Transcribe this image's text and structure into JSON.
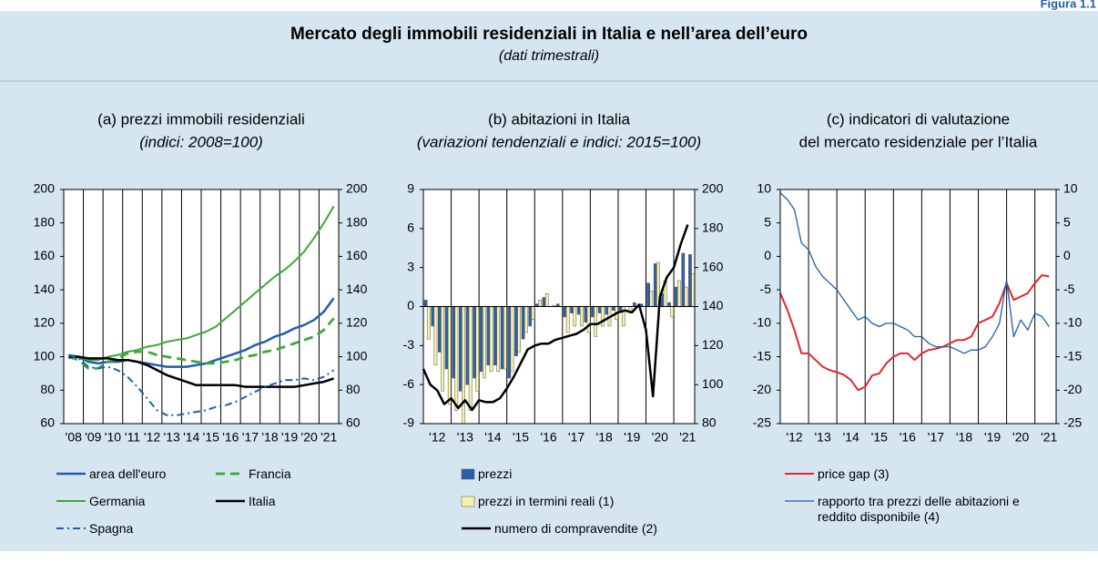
{
  "header": {
    "figure": "Figura 1.1",
    "title": "Mercato degli immobili residenziali in Italia e nell’area dell’euro",
    "subtitle": "(dati trimestrali)"
  },
  "chart_data": [
    {
      "type": "line",
      "title": "(a) prezzi immobili residenziali",
      "subtitle": "(indici: 2008=100)",
      "x": [
        2008.25,
        2008.75,
        2009.25,
        2009.75,
        2010.25,
        2010.75,
        2011.25,
        2011.75,
        2012.25,
        2012.75,
        2013.25,
        2013.75,
        2014.25,
        2014.75,
        2015.25,
        2015.75,
        2016.25,
        2016.75,
        2017.25,
        2017.75,
        2018.25,
        2018.75,
        2019.25,
        2019.75,
        2020.25,
        2020.75,
        2021.25,
        2021.75
      ],
      "xlim": [
        2008,
        2022
      ],
      "xticks": [
        {
          "value": 2008.5,
          "label": "'08"
        },
        {
          "value": 2009.5,
          "label": "'09"
        },
        {
          "value": 2010.5,
          "label": "'10"
        },
        {
          "value": 2011.5,
          "label": "'11"
        },
        {
          "value": 2012.5,
          "label": "'12"
        },
        {
          "value": 2013.5,
          "label": "'13"
        },
        {
          "value": 2014.5,
          "label": "'14"
        },
        {
          "value": 2015.5,
          "label": "'15"
        },
        {
          "value": 2016.5,
          "label": "'16"
        },
        {
          "value": 2017.5,
          "label": "'17"
        },
        {
          "value": 2018.5,
          "label": "'18"
        },
        {
          "value": 2019.5,
          "label": "'19"
        },
        {
          "value": 2020.5,
          "label": "'20"
        },
        {
          "value": 2021.5,
          "label": "'21"
        }
      ],
      "ylim": [
        60,
        200
      ],
      "yticks": [
        60,
        80,
        100,
        120,
        140,
        160,
        180,
        200
      ],
      "y2lim": [
        60,
        200
      ],
      "y2ticks": [
        60,
        80,
        100,
        120,
        140,
        160,
        180,
        200
      ],
      "series": [
        {
          "name": "area dell'euro",
          "color": "#1f5fad",
          "linestyle": "solid",
          "values": [
            101,
            100,
            97,
            96,
            97,
            97,
            98,
            97,
            96,
            95,
            94,
            94,
            94,
            95,
            96,
            98,
            100,
            102,
            104,
            107,
            109,
            112,
            114,
            117,
            119,
            122,
            127,
            135
          ]
        },
        {
          "name": "Francia",
          "color": "#3aaa35",
          "linestyle": "dashed",
          "values": [
            100,
            98,
            93,
            93,
            97,
            99,
            102,
            103,
            103,
            101,
            100,
            99,
            98,
            97,
            96,
            96,
            97,
            98,
            100,
            101,
            103,
            104,
            106,
            108,
            110,
            112,
            116,
            123
          ]
        },
        {
          "name": "Germania",
          "color": "#3aaa35",
          "linestyle": "solid",
          "values": [
            99,
            100,
            98,
            98,
            100,
            101,
            103,
            104,
            106,
            107,
            109,
            110,
            111,
            113,
            115,
            118,
            123,
            128,
            133,
            138,
            143,
            148,
            152,
            157,
            163,
            171,
            180,
            190
          ]
        },
        {
          "name": "Italia",
          "color": "#000000",
          "linestyle": "solid",
          "values": [
            100,
            100,
            99,
            99,
            99,
            98,
            98,
            97,
            95,
            92,
            89,
            87,
            85,
            83,
            83,
            83,
            83,
            83,
            82,
            82,
            82,
            82,
            82,
            82,
            83,
            84,
            85,
            87
          ]
        },
        {
          "name": "Spagna",
          "color": "#1f5fad",
          "linestyle": "dashdot",
          "values": [
            101,
            99,
            94,
            93,
            94,
            92,
            88,
            82,
            75,
            68,
            65,
            65,
            66,
            67,
            68,
            70,
            71,
            73,
            76,
            79,
            82,
            84,
            86,
            86,
            87,
            86,
            88,
            92
          ]
        }
      ]
    },
    {
      "type": "bar",
      "title": "(b) abitazioni in Italia",
      "subtitle": "(variazioni tendenziali e indici: 2015=100)",
      "x": [
        2012,
        2012.25,
        2012.5,
        2012.75,
        2013,
        2013.25,
        2013.5,
        2013.75,
        2014,
        2014.25,
        2014.5,
        2014.75,
        2015,
        2015.25,
        2015.5,
        2015.75,
        2016,
        2016.25,
        2016.5,
        2016.75,
        2017,
        2017.25,
        2017.5,
        2017.75,
        2018,
        2018.25,
        2018.5,
        2018.75,
        2019,
        2019.25,
        2019.5,
        2019.75,
        2020,
        2020.25,
        2020.5,
        2020.75,
        2021,
        2021.25,
        2021.5
      ],
      "xlim": [
        2012,
        2021.75
      ],
      "xticks": [
        {
          "value": 2012.5,
          "label": "'12"
        },
        {
          "value": 2013.5,
          "label": "'13"
        },
        {
          "value": 2014.5,
          "label": "'14"
        },
        {
          "value": 2015.5,
          "label": "'15"
        },
        {
          "value": 2016.5,
          "label": "'16"
        },
        {
          "value": 2017.5,
          "label": "'17"
        },
        {
          "value": 2018.5,
          "label": "'18"
        },
        {
          "value": 2019.5,
          "label": "'19"
        },
        {
          "value": 2020.5,
          "label": "'20"
        },
        {
          "value": 2021.5,
          "label": "'21"
        }
      ],
      "ylim": [
        -9,
        9
      ],
      "yticks": [
        -9,
        -6,
        -3,
        0,
        3,
        6,
        9
      ],
      "y2lim": [
        80,
        200
      ],
      "y2ticks": [
        80,
        100,
        120,
        140,
        160,
        180,
        200
      ],
      "series": [
        {
          "name": "prezzi",
          "type": "bar",
          "color": "#2f5ea8",
          "values": [
            0.5,
            -1.5,
            -3.5,
            -4.8,
            -5.5,
            -6.5,
            -6,
            -5.5,
            -5,
            -4.5,
            -4.5,
            -4.8,
            -5.5,
            -3.8,
            -2.5,
            -1.5,
            0.2,
            0.7,
            0,
            0.2,
            -0.8,
            -0.5,
            -0.6,
            -1.2,
            -0.8,
            -0.5,
            -0.6,
            -0.3,
            -0.3,
            0,
            0.3,
            0.2,
            1.8,
            3.3,
            1,
            0.3,
            1.5,
            4.1,
            4
          ]
        },
        {
          "name": "prezzi in termini reali (1)",
          "type": "bar",
          "color": "#f6f2a6",
          "values": [
            -2.5,
            -4.5,
            -6.5,
            -7.5,
            -8,
            -9,
            -8,
            -6.5,
            -5.5,
            -5,
            -5,
            -4.8,
            -5,
            -3.5,
            -2,
            -1,
            0.5,
            1,
            0.1,
            0,
            -2,
            -1.5,
            -1.5,
            -2,
            -2.3,
            -1.5,
            -1.5,
            -1,
            -1.5,
            -0.5,
            0,
            0,
            1.2,
            3.4,
            2,
            -0.8,
            2,
            1.5,
            2.5
          ]
        },
        {
          "name": "numero di compravendite (2)",
          "type": "line",
          "axis": "y2",
          "color": "#000000",
          "linestyle": "solid",
          "values": [
            108,
            100,
            97,
            90,
            93,
            88,
            92,
            87,
            92,
            91,
            91,
            93,
            98,
            104,
            111,
            118,
            120,
            121,
            121,
            123,
            124,
            125,
            126,
            128,
            131,
            131,
            133,
            135,
            137,
            138,
            137,
            141,
            128,
            94,
            145,
            155,
            160,
            172,
            182
          ]
        }
      ]
    },
    {
      "type": "line",
      "title": [
        "(c) indicatori di valutazione",
        "del mercato residenziale per l’Italia"
      ],
      "x": [
        2012,
        2012.25,
        2012.5,
        2012.75,
        2013,
        2013.25,
        2013.5,
        2013.75,
        2014,
        2014.25,
        2014.5,
        2014.75,
        2015,
        2015.25,
        2015.5,
        2015.75,
        2016,
        2016.25,
        2016.5,
        2016.75,
        2017,
        2017.25,
        2017.5,
        2017.75,
        2018,
        2018.25,
        2018.5,
        2018.75,
        2019,
        2019.25,
        2019.5,
        2019.75,
        2020,
        2020.25,
        2020.5,
        2020.75,
        2021,
        2021.25,
        2021.5
      ],
      "xlim": [
        2012,
        2021.75
      ],
      "xticks": [
        {
          "value": 2012.5,
          "label": "'12"
        },
        {
          "value": 2013.5,
          "label": "'13"
        },
        {
          "value": 2014.5,
          "label": "'14"
        },
        {
          "value": 2015.5,
          "label": "'15"
        },
        {
          "value": 2016.5,
          "label": "'16"
        },
        {
          "value": 2017.5,
          "label": "'17"
        },
        {
          "value": 2018.5,
          "label": "'18"
        },
        {
          "value": 2019.5,
          "label": "'19"
        },
        {
          "value": 2020.5,
          "label": "'20"
        },
        {
          "value": 2021.5,
          "label": "'21"
        }
      ],
      "ylim": [
        -25,
        10
      ],
      "yticks": [
        -25,
        -20,
        -15,
        -10,
        -5,
        0,
        5,
        10
      ],
      "y2lim": [
        -25,
        10
      ],
      "y2ticks": [
        -25,
        -20,
        -15,
        -10,
        -5,
        0,
        5,
        10
      ],
      "series": [
        {
          "name": "price gap (3)",
          "color": "#e3262a",
          "linestyle": "solid",
          "values": [
            -5.5,
            -8,
            -11,
            -14.5,
            -14.5,
            -15.5,
            -16.5,
            -17,
            -17.3,
            -17.7,
            -18.5,
            -20,
            -19.5,
            -17.8,
            -17.5,
            -16,
            -15,
            -14.5,
            -14.5,
            -15.5,
            -14.5,
            -14,
            -13.8,
            -13.5,
            -13,
            -12.5,
            -12.5,
            -12,
            -10,
            -9.5,
            -9,
            -7,
            -4,
            -6.5,
            -6,
            -5.5,
            -4,
            -2.8,
            -3
          ]
        },
        {
          "name": "rapporto tra prezzi delle abitazioni e reddito disponibile (4)",
          "color": "#1f5fad",
          "linestyle": "solid",
          "values": [
            9.5,
            8.5,
            7,
            2,
            1,
            -1.5,
            -3,
            -4,
            -5,
            -6.5,
            -8,
            -9.5,
            -9,
            -10,
            -10.5,
            -10,
            -10,
            -10.5,
            -11,
            -12,
            -12,
            -13,
            -13.5,
            -13.5,
            -13.5,
            -14,
            -14.5,
            -14,
            -14,
            -13.5,
            -12,
            -10,
            -3.5,
            -12,
            -9.5,
            -11,
            -8.5,
            -9,
            -10.5
          ]
        }
      ]
    }
  ]
}
